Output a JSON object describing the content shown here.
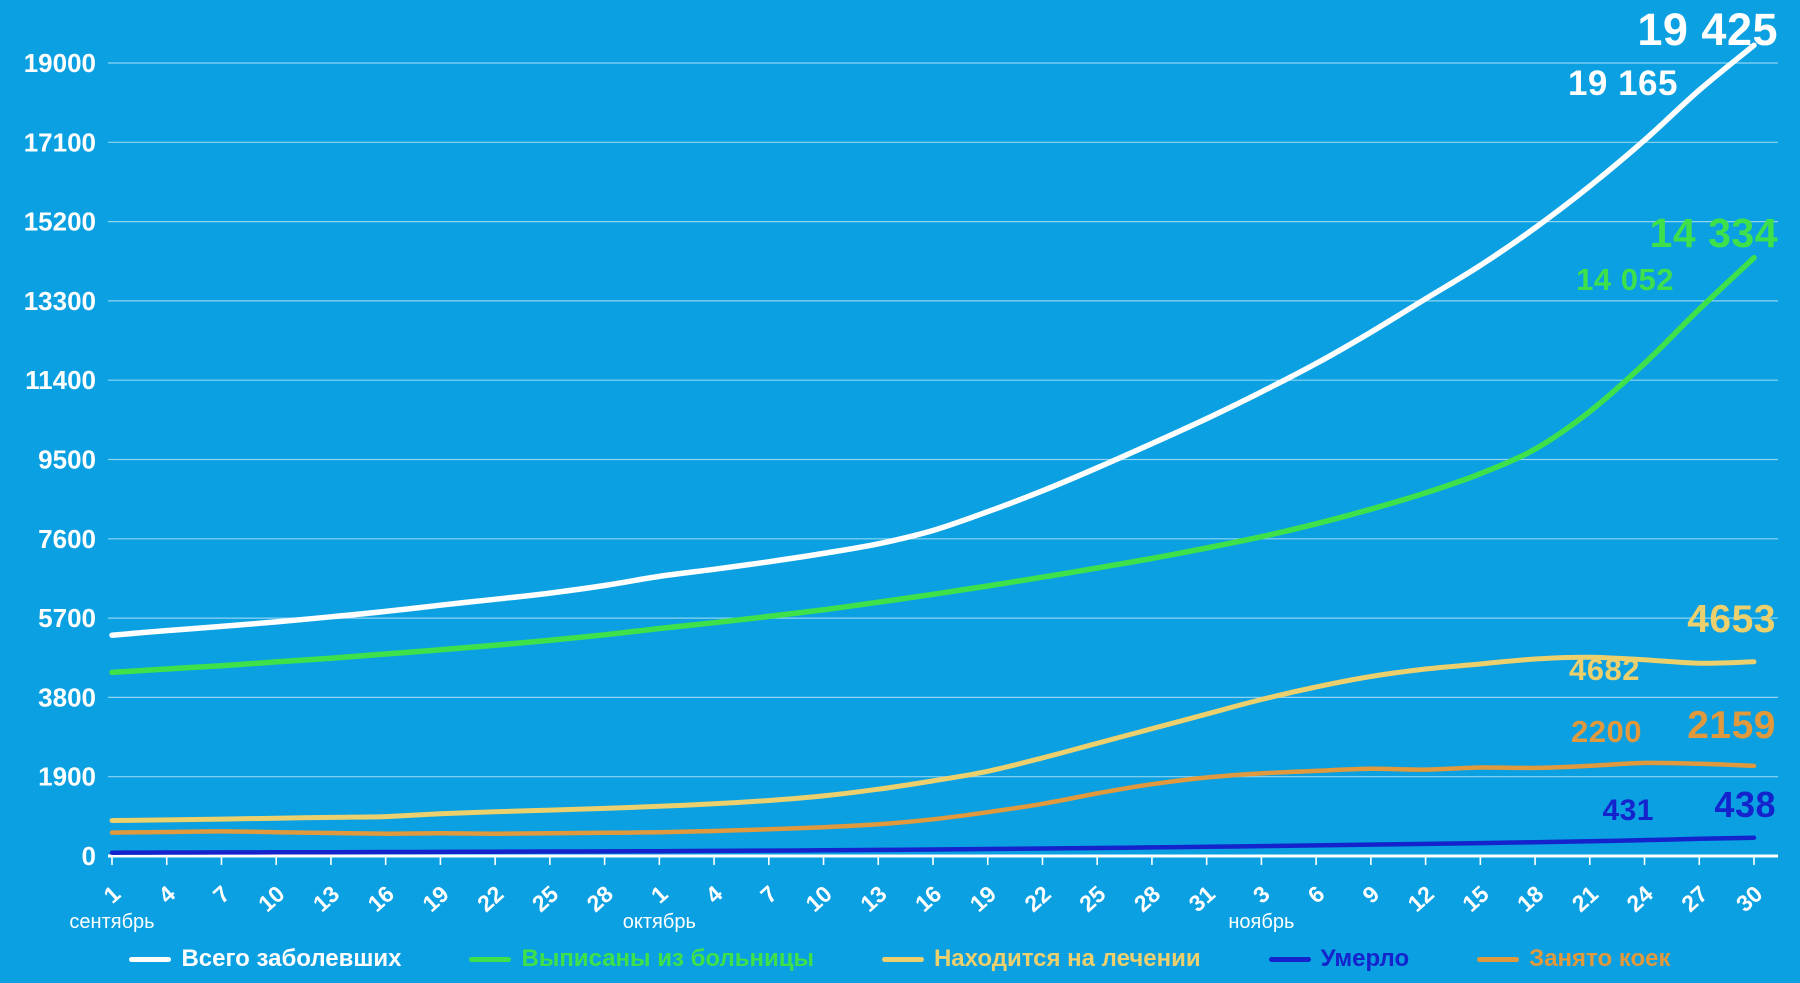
{
  "background_color": "#0aa0e2",
  "grid_color": "rgba(255,255,255,0.55)",
  "axis_text_color": "#ffffff",
  "chart_data": {
    "type": "line",
    "title": "",
    "grid": true,
    "ylim": [
      0,
      19950
    ],
    "y_ticks": [
      0,
      1900,
      3800,
      5700,
      7600,
      9500,
      11400,
      13300,
      15200,
      17100,
      19000
    ],
    "x_labels": [
      "1",
      "4",
      "7",
      "10",
      "13",
      "16",
      "19",
      "22",
      "25",
      "28",
      "1",
      "4",
      "7",
      "10",
      "13",
      "16",
      "19",
      "22",
      "25",
      "28",
      "31",
      "3",
      "6",
      "9",
      "12",
      "15",
      "18",
      "21",
      "24",
      "27",
      "30"
    ],
    "x_months": [
      {
        "label": "сентябрь",
        "index": 0
      },
      {
        "label": "октябрь",
        "index": 10
      },
      {
        "label": "ноябрь",
        "index": 21
      }
    ],
    "legend_position": "bottom",
    "series": [
      {
        "key": "total",
        "name": "Всего заболевших",
        "color": "#ffffff",
        "current": "19 425",
        "previous": "19 165",
        "values": [
          5290,
          5400,
          5500,
          5610,
          5730,
          5860,
          6010,
          6150,
          6300,
          6480,
          6700,
          6870,
          7050,
          7250,
          7480,
          7800,
          8250,
          8750,
          9300,
          9880,
          10480,
          11120,
          11800,
          12550,
          13350,
          14150,
          15050,
          16050,
          17150,
          18350,
          19425
        ]
      },
      {
        "key": "discharged",
        "name": "Выписаны из больницы",
        "color": "#3fe14b",
        "current": "14 334",
        "previous": "14 052",
        "values": [
          4400,
          4480,
          4560,
          4650,
          4740,
          4840,
          4940,
          5050,
          5170,
          5300,
          5450,
          5590,
          5740,
          5900,
          6080,
          6270,
          6470,
          6680,
          6900,
          7130,
          7380,
          7650,
          7960,
          8310,
          8700,
          9160,
          9750,
          10650,
          11800,
          13100,
          14334
        ]
      },
      {
        "key": "in-treatment",
        "name": "Находится на лечении",
        "color": "#ecd06e",
        "current": "4653",
        "previous": "4682",
        "values": [
          850,
          865,
          885,
          905,
          925,
          945,
          1010,
          1060,
          1100,
          1140,
          1190,
          1250,
          1330,
          1440,
          1600,
          1800,
          2030,
          2350,
          2700,
          3050,
          3400,
          3750,
          4050,
          4300,
          4480,
          4600,
          4720,
          4760,
          4700,
          4620,
          4653
        ]
      },
      {
        "key": "died",
        "name": "Умерло",
        "color": "#1523cc",
        "current": "438",
        "previous": "431",
        "values": [
          80,
          83,
          86,
          89,
          92,
          95,
          99,
          103,
          107,
          111,
          116,
          122,
          129,
          137,
          146,
          156,
          167,
          179,
          192,
          206,
          221,
          237,
          254,
          272,
          291,
          310,
          330,
          352,
          380,
          412,
          438
        ]
      },
      {
        "key": "beds-occupied",
        "name": "Занято коек",
        "color": "#e0993c",
        "current": "2159",
        "previous": "2200",
        "values": [
          560,
          575,
          590,
          570,
          550,
          535,
          545,
          535,
          545,
          555,
          570,
          600,
          640,
          690,
          760,
          880,
          1050,
          1250,
          1500,
          1720,
          1880,
          1980,
          2040,
          2090,
          2070,
          2120,
          2110,
          2160,
          2230,
          2210,
          2159
        ]
      }
    ]
  }
}
